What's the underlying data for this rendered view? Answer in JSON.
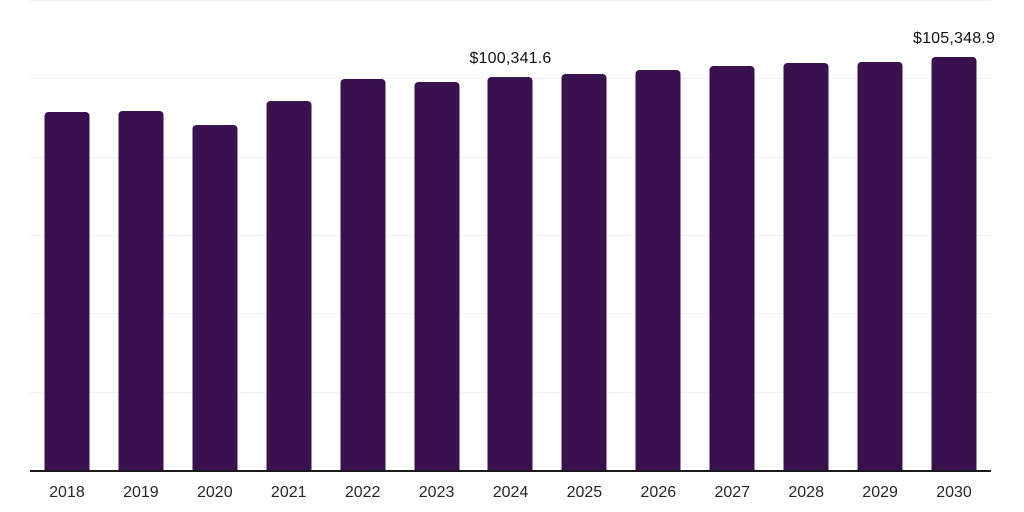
{
  "chart_data": {
    "type": "bar",
    "title": "",
    "xlabel": "",
    "ylabel": "",
    "categories": [
      "2018",
      "2019",
      "2020",
      "2021",
      "2022",
      "2023",
      "2024",
      "2025",
      "2026",
      "2027",
      "2028",
      "2029",
      "2030"
    ],
    "values": [
      91500,
      91700,
      88100,
      94200,
      99900,
      99200,
      100341.6,
      101100,
      102100,
      103100,
      103800,
      104300,
      105348.9
    ],
    "data_labels": [
      "",
      "",
      "",
      "",
      "",
      "",
      "$100,341.6",
      "",
      "",
      "",
      "",
      "",
      "$105,348.9"
    ],
    "ylim": [
      0,
      120000
    ],
    "gridline_step": 20000,
    "grid": "horizontal-only",
    "y_tick_labels_visible": false,
    "legend": "none",
    "bar_color": "#38114E",
    "gridline_color": "#f2f2f2",
    "axis_line_color": "#1a1a1a",
    "tick_label_color": "#262626",
    "value_label_color": "#111111",
    "background_color": "#ffffff"
  }
}
